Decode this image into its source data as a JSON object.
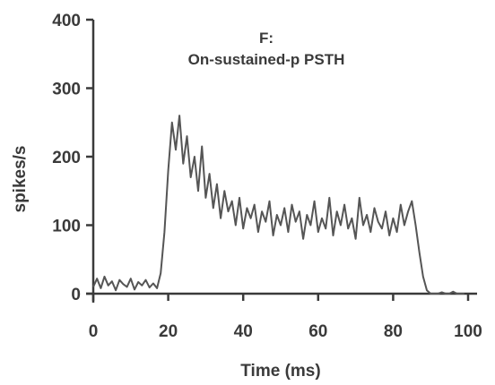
{
  "chart_data": {
    "type": "line",
    "title_lines": [
      "F:",
      "On-sustained-p PSTH"
    ],
    "xlabel": "Time (ms)",
    "ylabel": "spikes/s",
    "xlim": [
      0,
      100
    ],
    "ylim": [
      0,
      400
    ],
    "x_ticks": [
      0,
      20,
      40,
      60,
      80,
      100
    ],
    "y_ticks": [
      0,
      100,
      200,
      300,
      400
    ],
    "grid": false,
    "line_color": "#555555",
    "axis_color": "#3a3a3a",
    "series": [
      {
        "x": [
          0,
          1,
          2,
          3,
          4,
          5,
          6,
          7,
          8,
          9,
          10,
          11,
          12,
          13,
          14,
          15,
          16,
          17,
          18,
          19,
          20,
          21,
          22,
          23,
          24,
          25,
          26,
          27,
          28,
          29,
          30,
          31,
          32,
          33,
          34,
          35,
          36,
          37,
          38,
          39,
          40,
          41,
          42,
          43,
          44,
          45,
          46,
          47,
          48,
          49,
          50,
          51,
          52,
          53,
          54,
          55,
          56,
          57,
          58,
          59,
          60,
          61,
          62,
          63,
          64,
          65,
          66,
          67,
          68,
          69,
          70,
          71,
          72,
          73,
          74,
          75,
          76,
          77,
          78,
          79,
          80,
          81,
          82,
          83,
          84,
          85,
          86,
          87,
          88,
          89,
          90,
          91,
          92,
          93,
          94,
          95,
          96,
          97,
          98,
          99
        ],
        "values": [
          10,
          22,
          8,
          25,
          12,
          18,
          5,
          20,
          14,
          10,
          22,
          6,
          17,
          12,
          20,
          9,
          15,
          8,
          30,
          90,
          180,
          250,
          210,
          260,
          190,
          230,
          170,
          200,
          150,
          215,
          140,
          175,
          125,
          160,
          110,
          150,
          120,
          135,
          100,
          140,
          95,
          125,
          110,
          130,
          90,
          120,
          105,
          135,
          85,
          115,
          100,
          125,
          90,
          130,
          105,
          120,
          80,
          115,
          100,
          135,
          90,
          110,
          95,
          140,
          85,
          120,
          100,
          130,
          95,
          110,
          80,
          140,
          100,
          115,
          90,
          125,
          105,
          95,
          120,
          85,
          110,
          90,
          130,
          100,
          120,
          135,
          100,
          60,
          25,
          5,
          0,
          0,
          0,
          2,
          0,
          0,
          3,
          0,
          0,
          0
        ]
      }
    ]
  }
}
